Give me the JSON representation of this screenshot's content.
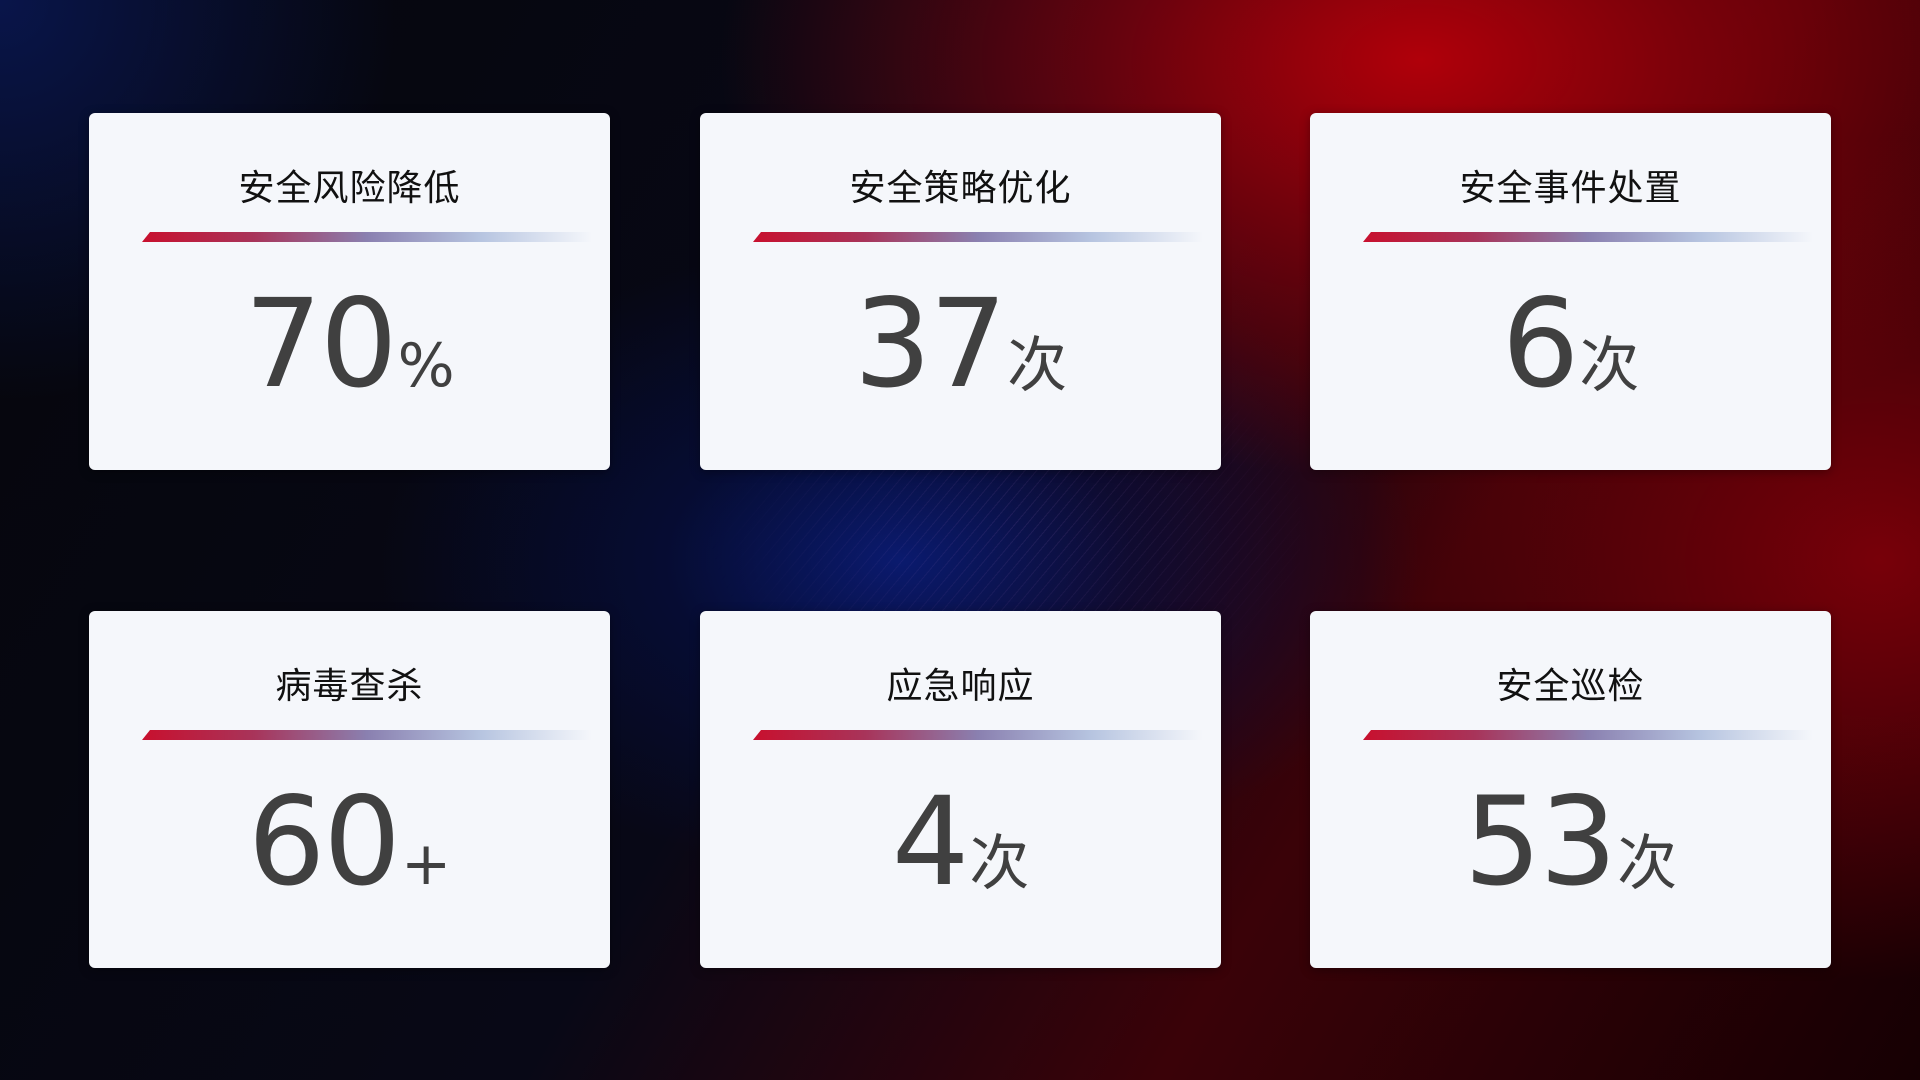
{
  "cards": [
    {
      "title": "安全风险降低",
      "value": "70",
      "unit": "%"
    },
    {
      "title": "安全策略优化",
      "value": "37",
      "unit": "次"
    },
    {
      "title": "安全事件处置",
      "value": "6",
      "unit": "次"
    },
    {
      "title": "病毒查杀",
      "value": "60",
      "unit": "+"
    },
    {
      "title": "应急响应",
      "value": "4",
      "unit": "次"
    },
    {
      "title": "安全巡检",
      "value": "53",
      "unit": "次"
    }
  ],
  "colors": {
    "accent_red": "#c8102e",
    "accent_blue": "#8a98c8",
    "card_bg": "#f5f7fb",
    "value_text": "#404040"
  }
}
